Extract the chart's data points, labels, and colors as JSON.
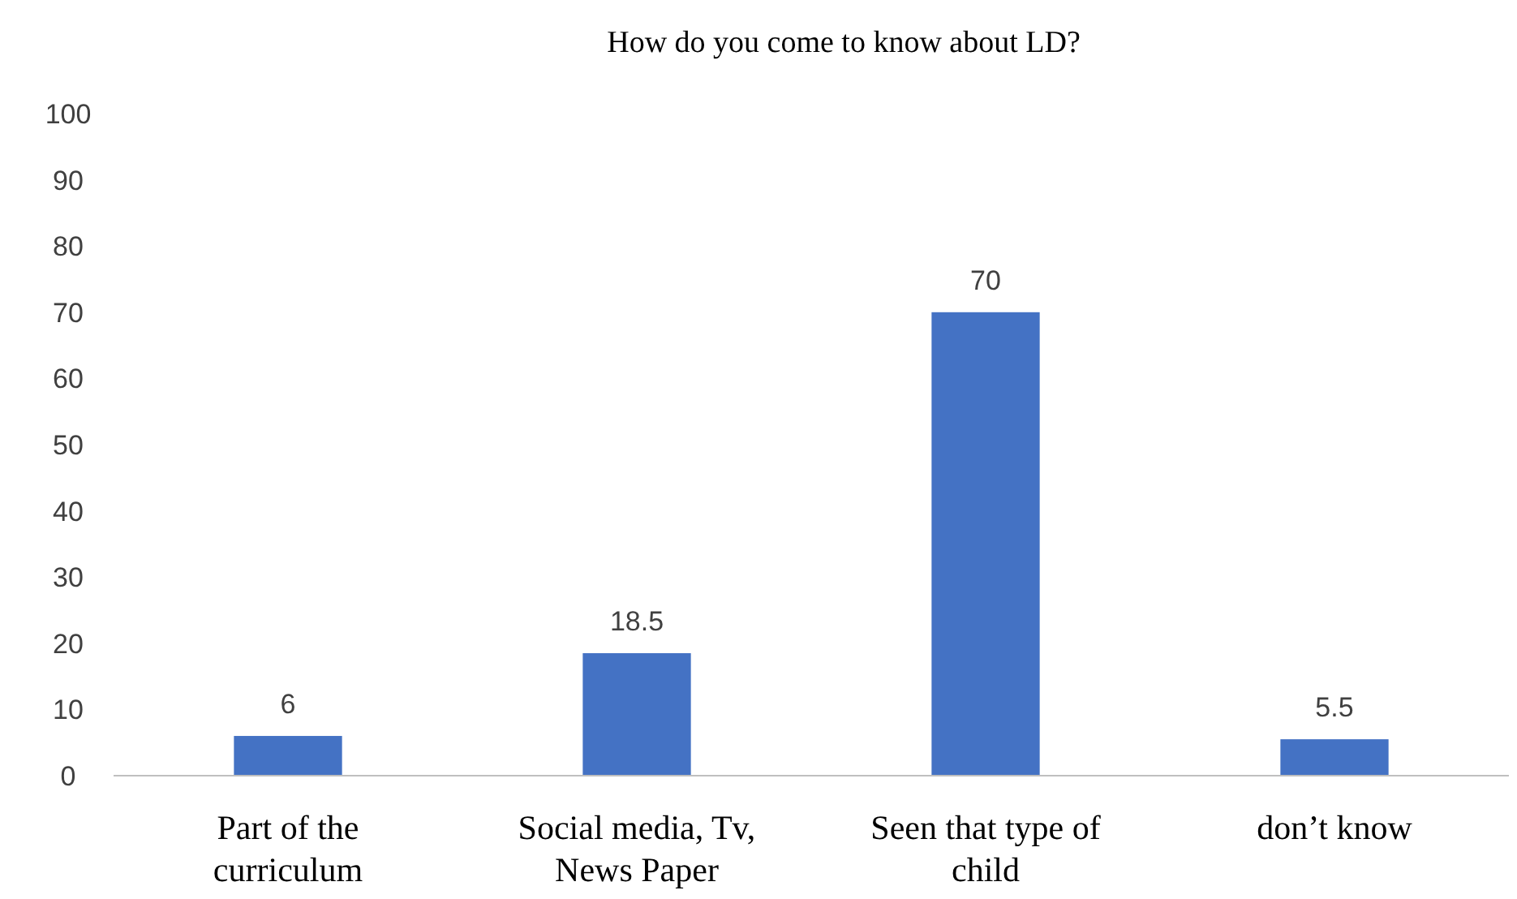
{
  "chart_data": {
    "type": "bar",
    "title": "How do you come to know about LD?",
    "categories": [
      "Part of the curriculum",
      "Social media, Tv, News Paper",
      "Seen that type of child",
      "don’t know"
    ],
    "values": [
      6,
      18.5,
      70,
      5.5
    ],
    "color": "#4472c4",
    "ylim": [
      0,
      100
    ],
    "yticks": [
      0,
      10,
      20,
      30,
      40,
      50,
      60,
      70,
      80,
      90,
      100
    ],
    "grid": false,
    "data_labels": true
  }
}
